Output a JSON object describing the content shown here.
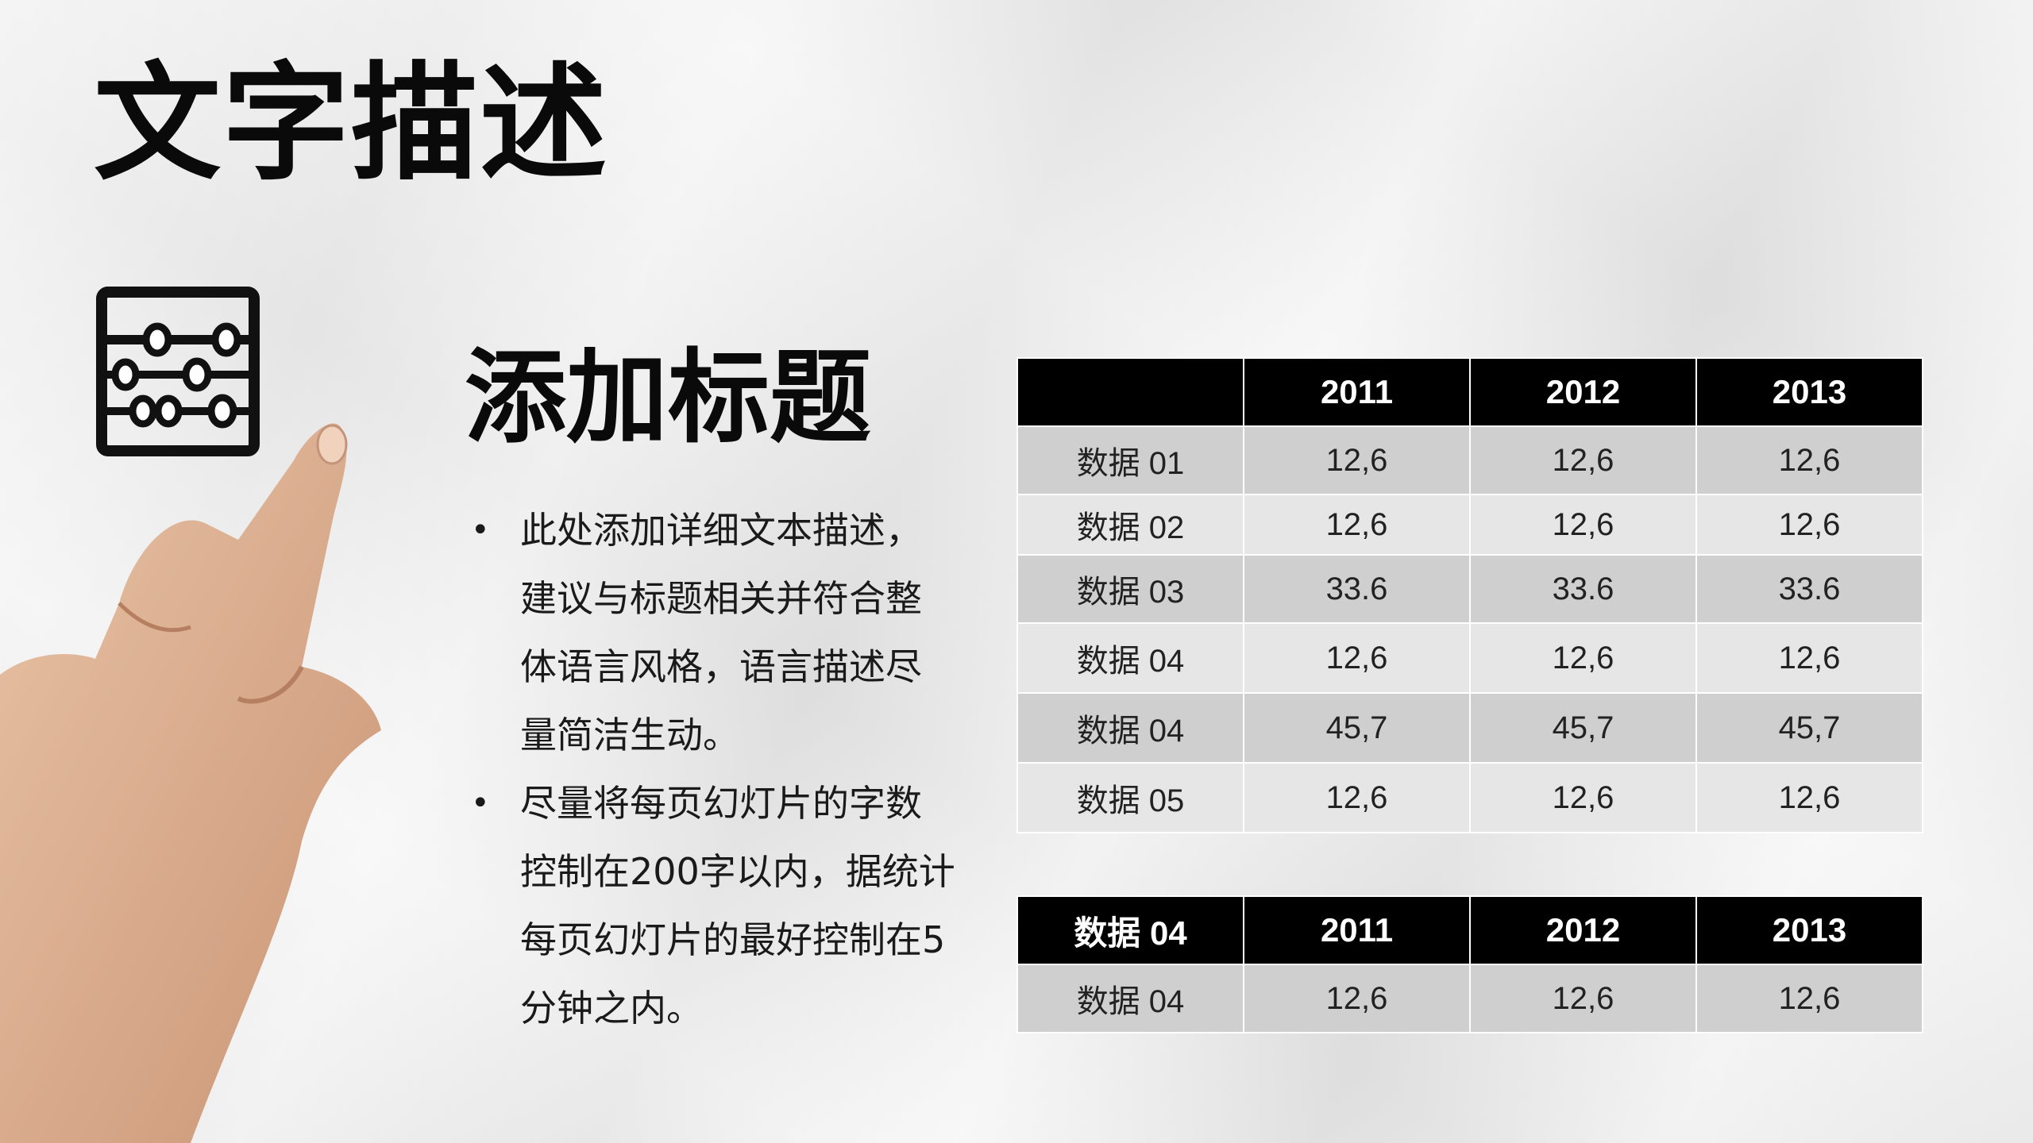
{
  "slide": {
    "title": "文字描述",
    "subtitle": "添加标题",
    "bullets": [
      "此处添加详细文本描述，建议与标题相关并符合整体语言风格，语言描述尽量简洁生动。",
      "尽量将每页幻灯片的字数控制在200字以内，据统计每页幻灯片的最好控制在5分钟之内。"
    ],
    "bullet_glyph": "•"
  },
  "icons": [
    "abacus-icon",
    "pointing-hand-image"
  ],
  "table1": {
    "headers": [
      "",
      "2011",
      "2012",
      "2013"
    ],
    "rows": [
      [
        "数据 01",
        "12,6",
        "12,6",
        "12,6"
      ],
      [
        "数据 02",
        "12,6",
        "12,6",
        "12,6"
      ],
      [
        "数据 03",
        "33.6",
        "33.6",
        "33.6"
      ],
      [
        "数据 04",
        "12,6",
        "12,6",
        "12,6"
      ],
      [
        "数据 04",
        "45,7",
        "45,7",
        "45,7"
      ],
      [
        "数据 05",
        "12,6",
        "12,6",
        "12,6"
      ]
    ]
  },
  "table2": {
    "headers": [
      "数据 04",
      "2011",
      "2012",
      "2013"
    ],
    "rows": [
      [
        "数据 04",
        "12,6",
        "12,6",
        "12,6"
      ]
    ]
  },
  "colors": {
    "header_bg": "#000000",
    "row_dark": "#cfcfcf",
    "row_light": "#e6e6e6",
    "text": "#0a0a0a"
  }
}
